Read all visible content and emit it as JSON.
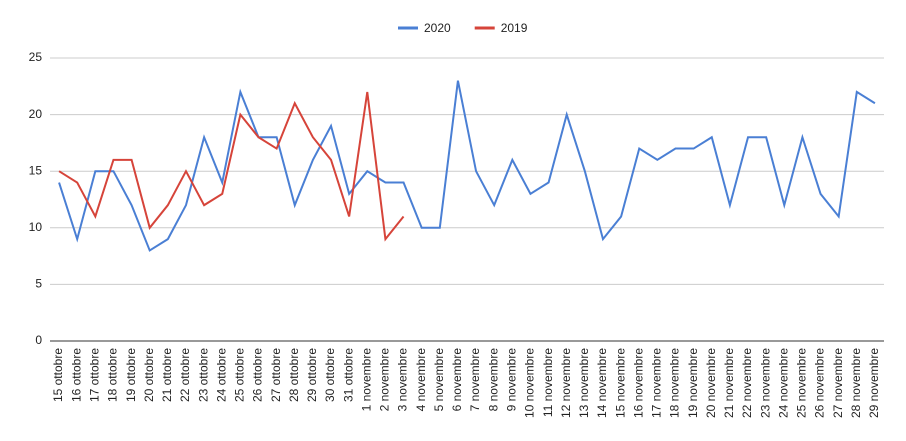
{
  "chart_data": {
    "type": "line",
    "categories": [
      "15 ottobre",
      "16 ottobre",
      "17 ottobre",
      "18 ottobre",
      "19 ottobre",
      "20 ottobre",
      "21 ottobre",
      "22 ottobre",
      "23 ottobre",
      "24 ottobre",
      "25 ottobre",
      "26 ottobre",
      "27 ottobre",
      "28 ottobre",
      "29 ottobre",
      "30 ottobre",
      "31 ottobre",
      "1 novembre",
      "2 novembre",
      "3 novembre",
      "4 novembre",
      "5 novembre",
      "6 novembre",
      "7 novembre",
      "8 novembre",
      "9 novembre",
      "10 novembre",
      "11 novembre",
      "12 novembre",
      "13 novembre",
      "14 novembre",
      "15 novembre",
      "16 novembre",
      "17 novembre",
      "18 novembre",
      "19 novembre",
      "20 novembre",
      "21 novembre",
      "22 novembre",
      "23 novembre",
      "24 novembre",
      "25 novembre",
      "26 novembre",
      "27 novembre",
      "28 novembre",
      "29 novembre"
    ],
    "series": [
      {
        "name": "2020",
        "color": "#4a7fd4",
        "values": [
          14,
          9,
          15,
          15,
          12,
          8,
          9,
          12,
          18,
          14,
          22,
          18,
          18,
          12,
          16,
          19,
          13,
          15,
          14,
          14,
          10,
          10,
          23,
          15,
          12,
          16,
          13,
          14,
          20,
          15,
          9,
          11,
          17,
          16,
          17,
          17,
          18,
          12,
          18,
          18,
          12,
          18,
          13,
          11,
          22,
          21
        ]
      },
      {
        "name": "2019",
        "color": "#d6443a",
        "values": [
          15,
          14,
          11,
          16,
          16,
          10,
          12,
          15,
          12,
          13,
          20,
          18,
          17,
          21,
          18,
          16,
          11,
          22,
          9,
          11,
          null,
          null,
          null,
          null,
          null,
          null,
          null,
          null,
          null,
          null,
          null,
          null,
          null,
          null,
          null,
          null,
          null,
          null,
          null,
          null,
          null,
          null,
          null,
          null,
          null,
          null
        ]
      }
    ],
    "ylim": [
      0,
      25
    ],
    "yticks": [
      0,
      5,
      10,
      15,
      20,
      25
    ],
    "grid": true,
    "legend": "top"
  }
}
